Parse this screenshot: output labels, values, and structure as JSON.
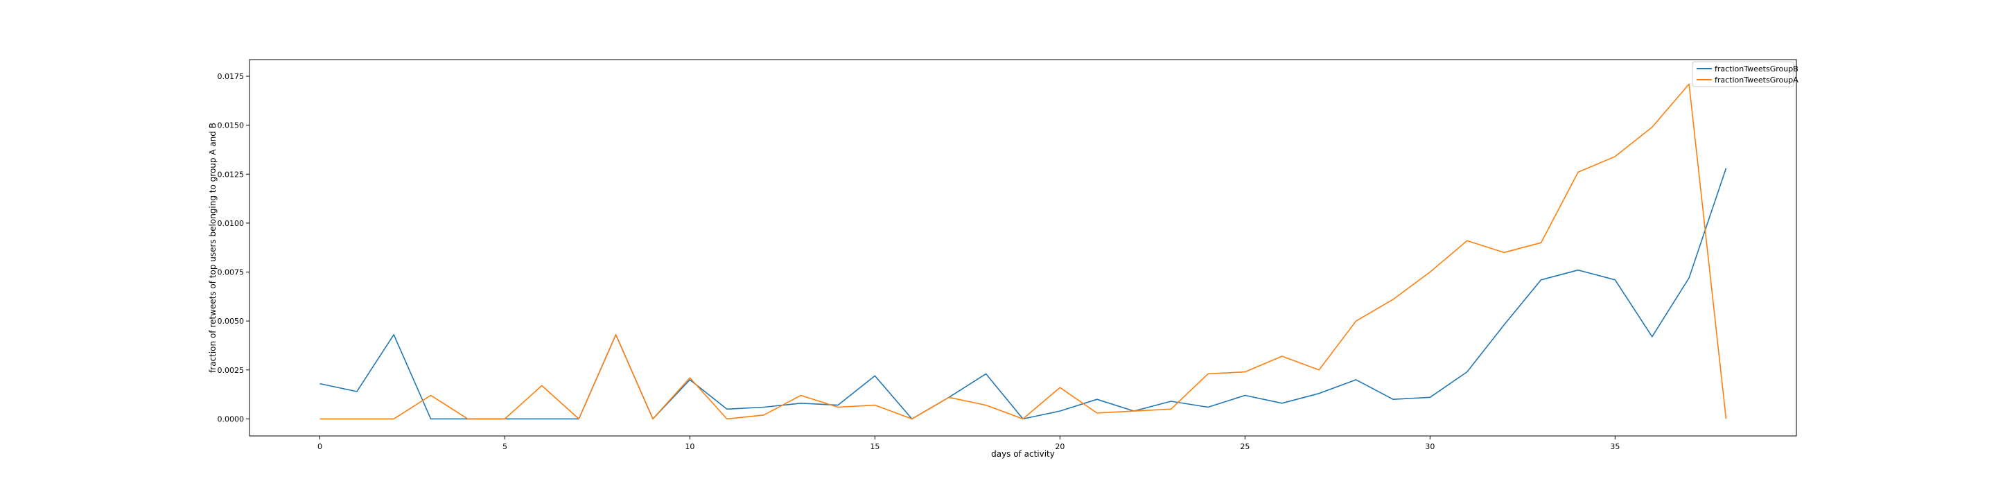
{
  "chart_data": {
    "type": "line",
    "title": "",
    "xlabel": "days of activity",
    "ylabel": "fraction of retweets of top users belonging to group A and B",
    "xlim": [
      -1.9,
      39.9
    ],
    "ylim": [
      -0.00087,
      0.01835
    ],
    "x_ticks": [
      0,
      5,
      10,
      15,
      20,
      25,
      30,
      35
    ],
    "x_tick_labels": [
      "0",
      "5",
      "10",
      "15",
      "20",
      "25",
      "30",
      "35"
    ],
    "y_ticks": [
      0,
      0.0025,
      0.005,
      0.0075,
      0.01,
      0.0125,
      0.015,
      0.0175
    ],
    "y_tick_labels": [
      "0.0000",
      "0.0025",
      "0.0050",
      "0.0075",
      "0.0100",
      "0.0125",
      "0.0150",
      "0.0175"
    ],
    "grid": false,
    "legend_position": "top-right",
    "x": [
      0,
      1,
      2,
      3,
      4,
      5,
      6,
      7,
      8,
      9,
      10,
      11,
      12,
      13,
      14,
      15,
      16,
      17,
      18,
      19,
      20,
      21,
      22,
      23,
      24,
      25,
      26,
      27,
      28,
      29,
      30,
      31,
      32,
      33,
      34,
      35,
      36,
      37,
      38
    ],
    "series": [
      {
        "name": "fractionTweetsGroupB",
        "color": "#1f77b4",
        "values": [
          0.0018,
          0.0014,
          0.0043,
          0.0,
          0.0,
          0.0,
          0.0,
          0.0,
          0.0043,
          0.0,
          0.002,
          0.0005,
          0.0006,
          0.0008,
          0.0007,
          0.0022,
          0.0,
          0.0011,
          0.0023,
          0.0,
          0.0004,
          0.001,
          0.0004,
          0.0009,
          0.0006,
          0.0012,
          0.0008,
          0.0013,
          0.002,
          0.001,
          0.0011,
          0.0024,
          0.0048,
          0.0071,
          0.0076,
          0.0071,
          0.0042,
          0.0072,
          0.0128
        ]
      },
      {
        "name": "fractionTweetsGroupA",
        "color": "#ff7f0e",
        "values": [
          0.0,
          0.0,
          0.0,
          0.0012,
          0.0,
          0.0,
          0.0017,
          0.0,
          0.0043,
          0.0,
          0.0021,
          0.0,
          0.0002,
          0.0012,
          0.0006,
          0.0007,
          0.0,
          0.0011,
          0.0007,
          0.0,
          0.0016,
          0.0003,
          0.0004,
          0.0005,
          0.0023,
          0.0024,
          0.0032,
          0.0025,
          0.005,
          0.0061,
          0.0075,
          0.0091,
          0.0085,
          0.009,
          0.0126,
          0.0134,
          0.0149,
          0.0171,
          0.0
        ]
      }
    ]
  }
}
